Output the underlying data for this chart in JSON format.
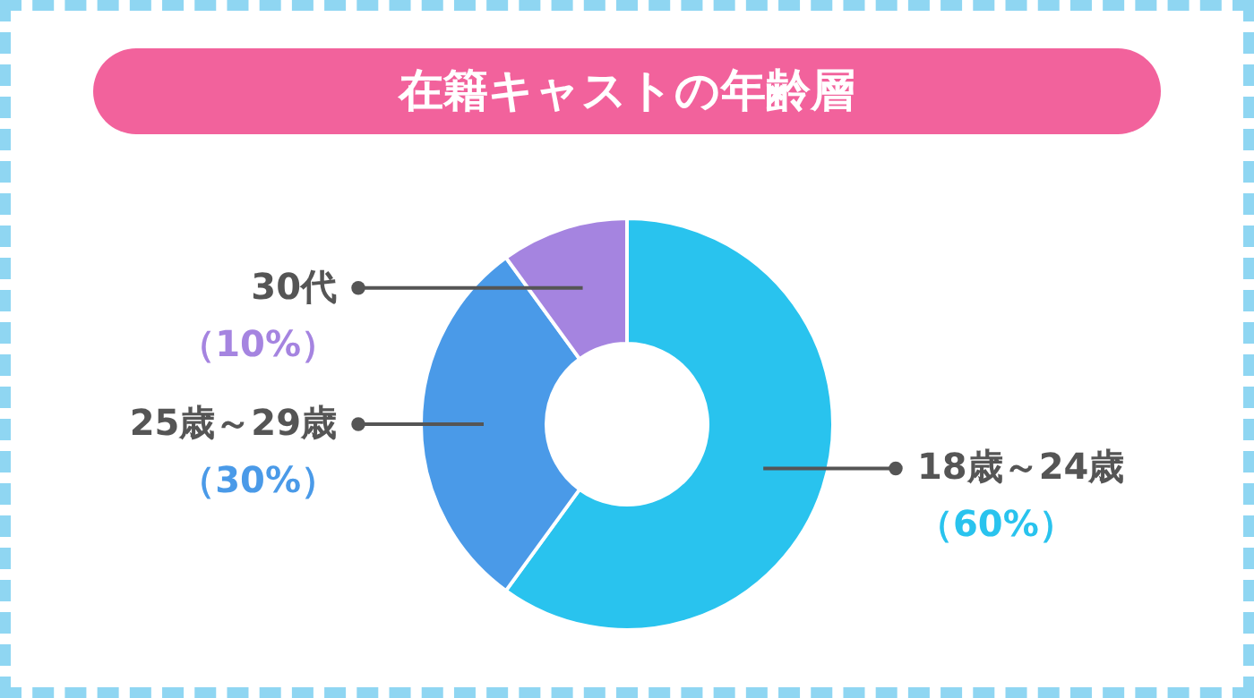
{
  "chart_data": {
    "type": "donut",
    "title": "在籍キャストの年齢層",
    "categories": [
      "18歳～24歳",
      "25歳～29歳",
      "30代"
    ],
    "values": [
      60,
      30,
      10
    ],
    "colors": [
      "#29c3ee",
      "#4a9ae8",
      "#a584e0"
    ],
    "value_labels": [
      "（60%）",
      "（30%）",
      "（10%）"
    ]
  }
}
